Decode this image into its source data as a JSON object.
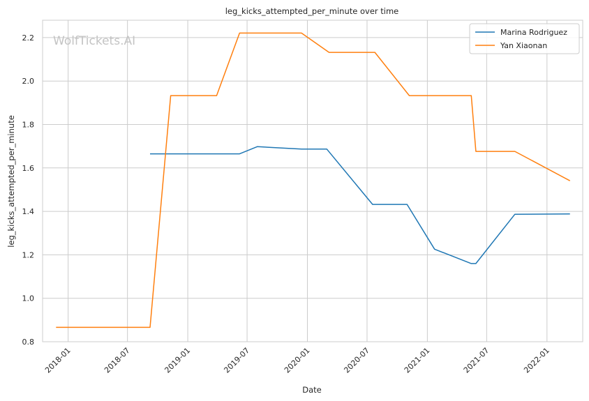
{
  "chart_data": {
    "type": "line",
    "title": "leg_kicks_attempted_per_minute over time",
    "xlabel": "Date",
    "ylabel": "leg_kicks_attempted_per_minute",
    "watermark": "WolfTickets.AI",
    "xlim": [
      "2017-10-15",
      "2022-04-20"
    ],
    "ylim": [
      0.8,
      2.28
    ],
    "x_ticks": [
      "2018-01",
      "2018-07",
      "2019-01",
      "2019-07",
      "2020-01",
      "2020-07",
      "2021-01",
      "2021-07",
      "2022-01"
    ],
    "y_ticks": [
      0.8,
      1.0,
      1.2,
      1.4,
      1.6,
      1.8,
      2.0,
      2.2
    ],
    "y_tick_labels": [
      "0.8",
      "1.0",
      "1.2",
      "1.4",
      "1.6",
      "1.8",
      "2.0",
      "2.2"
    ],
    "grid": true,
    "legend_position": "top-right",
    "series": [
      {
        "name": "Marina Rodriguez",
        "color": "#1f77b4",
        "points": [
          {
            "x": "2018-09-08",
            "y": 1.665
          },
          {
            "x": "2019-06-08",
            "y": 1.665
          },
          {
            "x": "2019-08-01",
            "y": 1.698
          },
          {
            "x": "2019-12-14",
            "y": 1.687
          },
          {
            "x": "2020-02-29",
            "y": 1.687
          },
          {
            "x": "2020-07-18",
            "y": 1.432
          },
          {
            "x": "2020-10-31",
            "y": 1.432
          },
          {
            "x": "2021-01-23",
            "y": 1.226
          },
          {
            "x": "2021-05-15",
            "y": 1.16
          },
          {
            "x": "2021-05-29",
            "y": 1.16
          },
          {
            "x": "2021-09-25",
            "y": 1.387
          },
          {
            "x": "2022-03-12",
            "y": 1.388
          }
        ]
      },
      {
        "name": "Yan Xiaonan",
        "color": "#ff7f0e",
        "points": [
          {
            "x": "2017-11-25",
            "y": 0.866
          },
          {
            "x": "2018-09-08",
            "y": 0.866
          },
          {
            "x": "2018-11-10",
            "y": 1.933
          },
          {
            "x": "2019-03-30",
            "y": 1.933
          },
          {
            "x": "2019-06-08",
            "y": 2.221
          },
          {
            "x": "2019-12-14",
            "y": 2.221
          },
          {
            "x": "2020-03-07",
            "y": 2.132
          },
          {
            "x": "2020-07-25",
            "y": 2.132
          },
          {
            "x": "2020-11-07",
            "y": 1.933
          },
          {
            "x": "2021-05-15",
            "y": 1.933
          },
          {
            "x": "2021-05-29",
            "y": 1.676
          },
          {
            "x": "2021-09-25",
            "y": 1.676
          },
          {
            "x": "2022-03-12",
            "y": 1.541
          }
        ]
      }
    ]
  }
}
